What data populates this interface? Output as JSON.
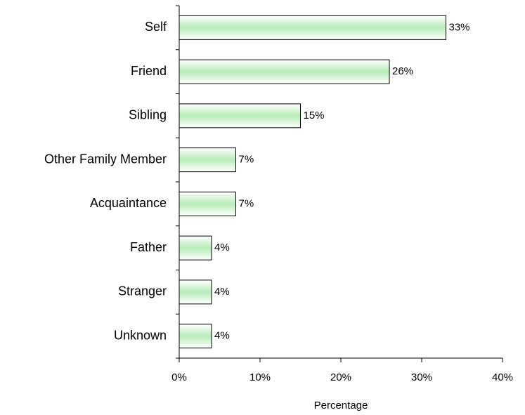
{
  "chart_data": {
    "type": "bar",
    "orientation": "horizontal",
    "categories": [
      "Self",
      "Friend",
      "Sibling",
      "Other Family Member",
      "Acquaintance",
      "Father",
      "Stranger",
      "Unknown"
    ],
    "values": [
      33,
      26,
      15,
      7,
      7,
      4,
      4,
      4
    ],
    "value_labels": [
      "33%",
      "26%",
      "15%",
      "7%",
      "7%",
      "4%",
      "4%",
      "4%"
    ],
    "color": "#b8ecb8",
    "xlabel": "Percentage",
    "xlim": [
      0,
      40
    ],
    "xticks": [
      {
        "value": 0,
        "label": "0%"
      },
      {
        "value": 10,
        "label": "10%"
      },
      {
        "value": 20,
        "label": "20%"
      },
      {
        "value": 30,
        "label": "30%"
      },
      {
        "value": 40,
        "label": "40%"
      }
    ],
    "grid": false
  }
}
